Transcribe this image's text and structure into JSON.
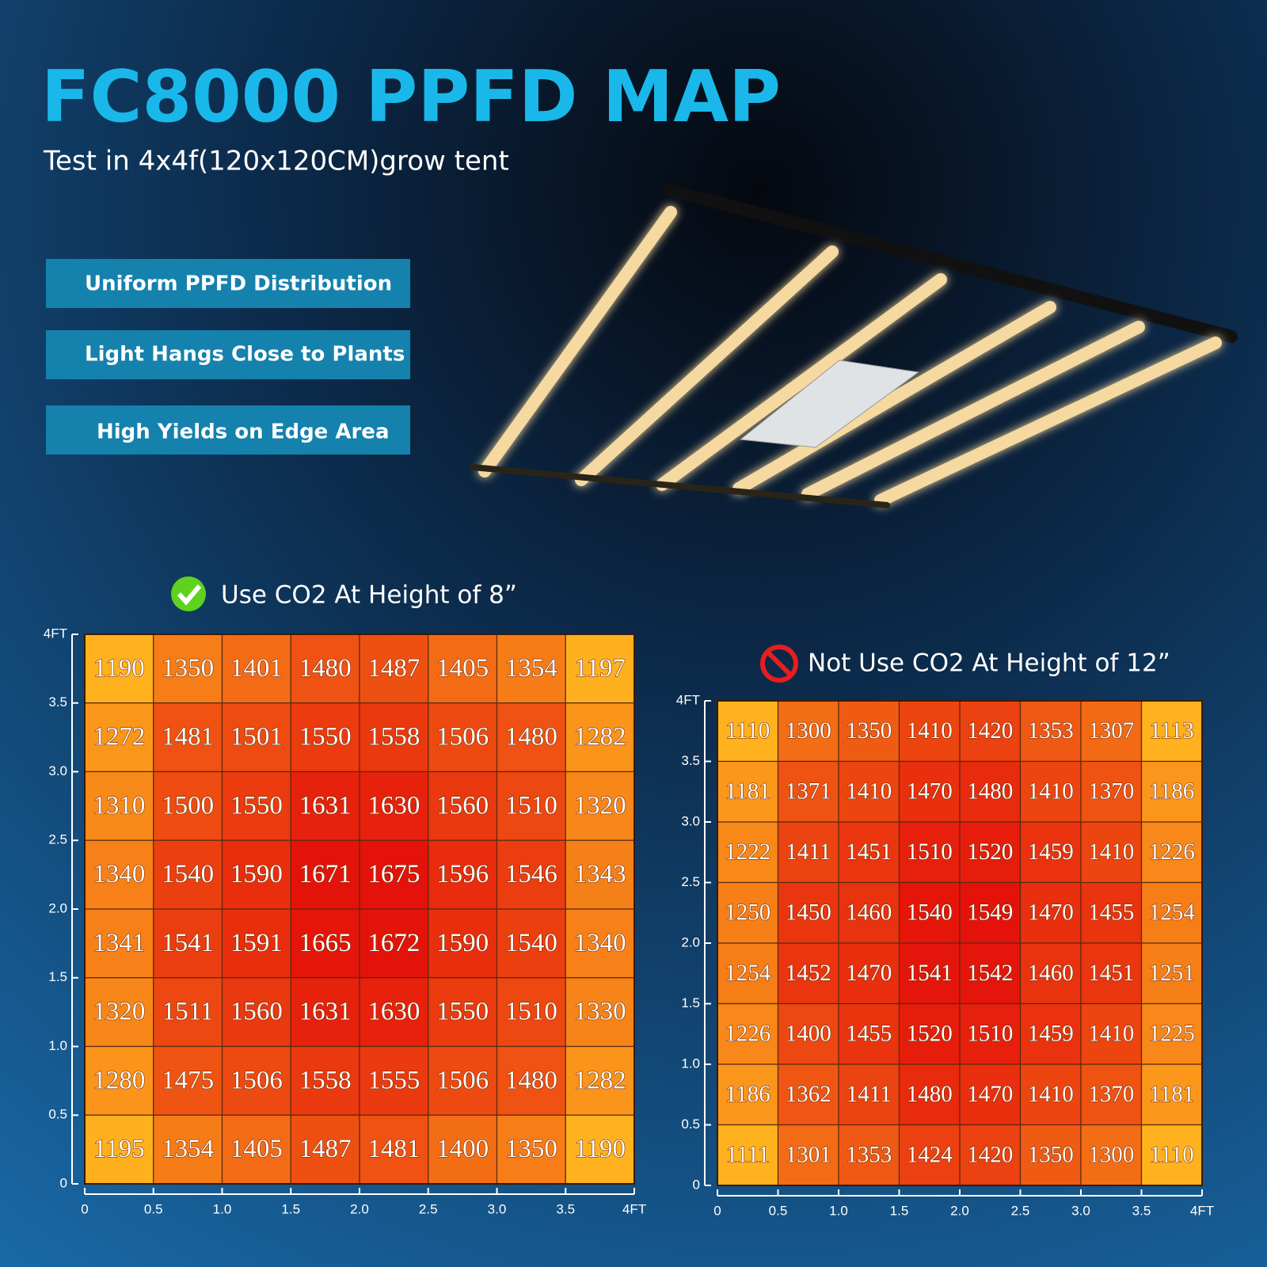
{
  "header": {
    "title": "FC8000 PPFD MAP",
    "subtitle": "Test in 4x4f(120x120CM)grow tent"
  },
  "features": [
    "Uniform PPFD Distribution",
    "Light Hangs Close to Plants",
    "High Yields on Edge Area"
  ],
  "chart_data": [
    {
      "type": "heatmap",
      "title": "Use CO2 At Height of 8”",
      "xlim": [
        0,
        4
      ],
      "ylim": [
        0,
        4
      ],
      "xticks": [
        0,
        0.5,
        {
          "value": 1,
          "label": "1.0"
        },
        1.5,
        {
          "value": 2,
          "label": "2.0"
        },
        2.5,
        {
          "value": 3,
          "label": "3.0"
        },
        3.5,
        {
          "value": 4,
          "label": "4FT"
        }
      ],
      "yticks": [
        0,
        0.5,
        {
          "value": 1,
          "label": "1.0"
        },
        1.5,
        {
          "value": 2,
          "label": "2.0"
        },
        2.5,
        {
          "value": 3,
          "label": "3.0"
        },
        3.5,
        {
          "value": 4,
          "label": "4FT"
        }
      ],
      "values": [
        [
          1190,
          1350,
          1401,
          1480,
          1487,
          1405,
          1354,
          1197
        ],
        [
          1272,
          1481,
          1501,
          1550,
          1558,
          1506,
          1480,
          1282
        ],
        [
          1310,
          1500,
          1550,
          1631,
          1630,
          1560,
          1510,
          1320
        ],
        [
          1340,
          1540,
          1590,
          1671,
          1675,
          1596,
          1546,
          1343
        ],
        [
          1341,
          1541,
          1591,
          1665,
          1672,
          1590,
          1540,
          1340
        ],
        [
          1320,
          1511,
          1560,
          1631,
          1630,
          1550,
          1510,
          1330
        ],
        [
          1280,
          1475,
          1506,
          1558,
          1555,
          1506,
          1480,
          1282
        ],
        [
          1195,
          1354,
          1405,
          1487,
          1481,
          1400,
          1350,
          1190
        ]
      ]
    },
    {
      "type": "heatmap",
      "title": "Not Use CO2 At Height of 12”",
      "xlim": [
        0,
        4
      ],
      "ylim": [
        0,
        4
      ],
      "xticks": [
        0,
        0.5,
        {
          "value": 1,
          "label": "1.0"
        },
        1.5,
        {
          "value": 2,
          "label": "2.0"
        },
        2.5,
        {
          "value": 3,
          "label": "3.0"
        },
        3.5,
        {
          "value": 4,
          "label": "4FT"
        }
      ],
      "yticks": [
        0,
        0.5,
        {
          "value": 1,
          "label": "1.0"
        },
        1.5,
        {
          "value": 2,
          "label": "2.0"
        },
        2.5,
        {
          "value": 3,
          "label": "3.0"
        },
        3.5,
        {
          "value": 4,
          "label": "4FT"
        }
      ],
      "values": [
        [
          1110,
          1300,
          1350,
          1410,
          1420,
          1353,
          1307,
          1113
        ],
        [
          1181,
          1371,
          1410,
          1470,
          1480,
          1410,
          1370,
          1186
        ],
        [
          1222,
          1411,
          1451,
          1510,
          1520,
          1459,
          1410,
          1226
        ],
        [
          1250,
          1450,
          1460,
          1540,
          1549,
          1470,
          1455,
          1254
        ],
        [
          1254,
          1452,
          1470,
          1541,
          1542,
          1460,
          1451,
          1251
        ],
        [
          1226,
          1400,
          1455,
          1520,
          1510,
          1459,
          1410,
          1225
        ],
        [
          1186,
          1362,
          1411,
          1480,
          1470,
          1410,
          1370,
          1181
        ],
        [
          1111,
          1301,
          1353,
          1424,
          1420,
          1350,
          1300,
          1110
        ]
      ]
    }
  ]
}
